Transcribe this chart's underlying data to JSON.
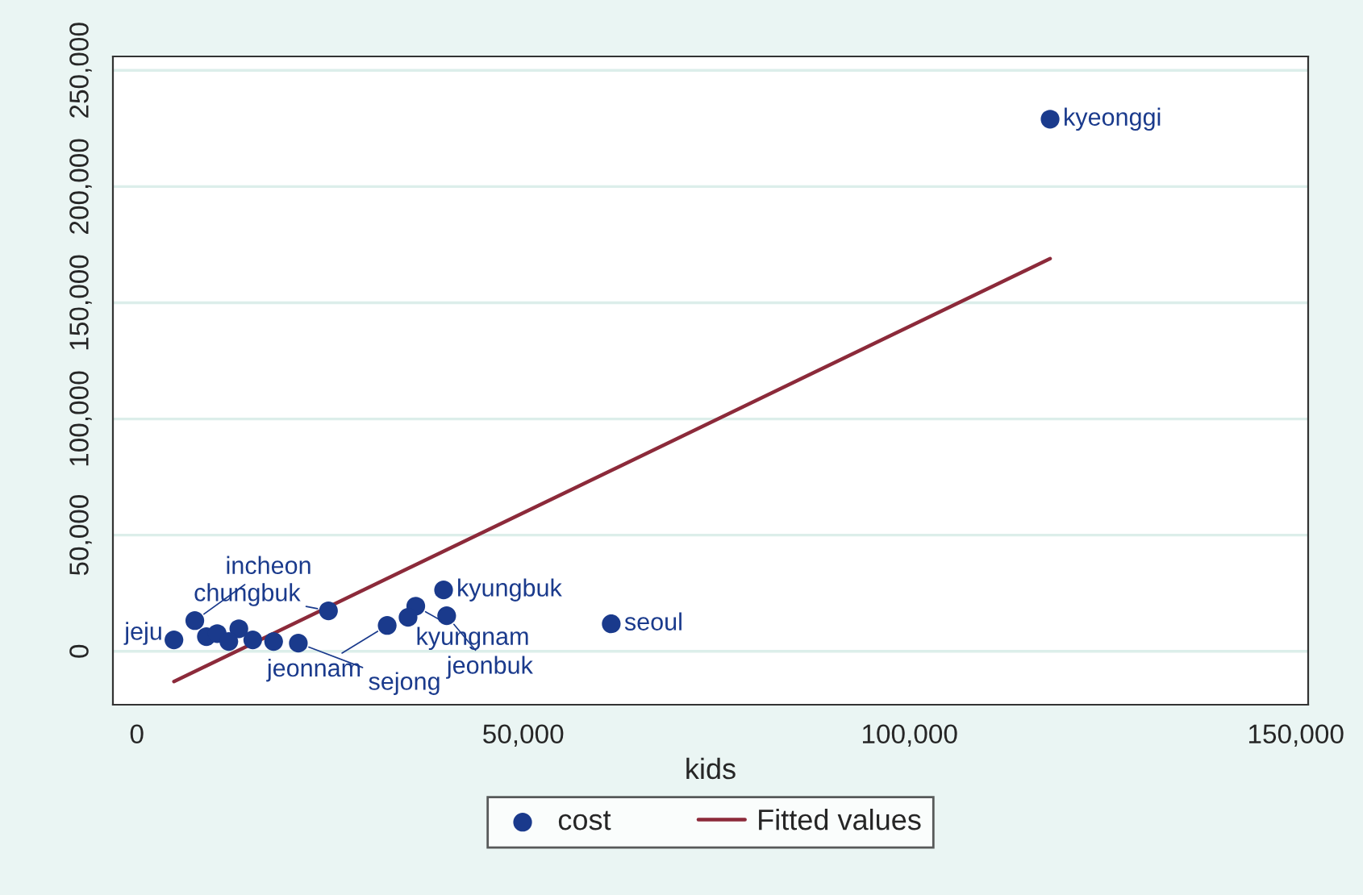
{
  "chart_data": {
    "type": "scatter",
    "xlabel": "kids",
    "xlim": [
      -3100,
      151600
    ],
    "xticks": [
      {
        "value": 0,
        "label": "0"
      },
      {
        "value": 50000,
        "label": "50,000"
      },
      {
        "value": 100000,
        "label": "100,000"
      },
      {
        "value": 150000,
        "label": "150,000"
      }
    ],
    "ylim": [
      -23000,
      256000
    ],
    "yticks": [
      {
        "value": 0,
        "label": "0"
      },
      {
        "value": 50000,
        "label": "50,000"
      },
      {
        "value": 100000,
        "label": "100,000"
      },
      {
        "value": 150000,
        "label": "150,000"
      },
      {
        "value": 200000,
        "label": "200,000"
      },
      {
        "value": 250000,
        "label": "250,000"
      }
    ],
    "grid": "y",
    "legend": "bottom",
    "series": [
      {
        "name": "cost",
        "marker": "circle",
        "color": "#1a3a8c",
        "x": [
          118200,
          61400,
          39700,
          36100,
          40100,
          35100,
          24800,
          32400,
          7500,
          4800,
          9000,
          10400,
          13200,
          11900,
          15000,
          17700,
          20900
        ],
        "values": [
          229000,
          11800,
          26400,
          19400,
          15300,
          14600,
          17400,
          11100,
          13200,
          4900,
          6300,
          7600,
          9700,
          4200,
          4900,
          4200,
          3500
        ]
      },
      {
        "name": "Fitted values",
        "type": "line",
        "color": "#8c2a3a",
        "line_style": "solid",
        "x": [
          4800,
          118200
        ],
        "values": [
          -13000,
          169000
        ]
      }
    ],
    "annotations": [
      {
        "text": "kyeonggi",
        "x": 118200,
        "y": 229000
      },
      {
        "text": "seoul",
        "x": 61400,
        "y": 11800
      },
      {
        "text": "kyungbuk",
        "x": 39700,
        "y": 26400
      },
      {
        "text": "kyungnam",
        "x": 36100,
        "y": 19400
      },
      {
        "text": "jeonbuk",
        "x": 40100,
        "y": 15300
      },
      {
        "text": "chungbuk",
        "x": 24800,
        "y": 17400
      },
      {
        "text": "jeonnam",
        "x": 32400,
        "y": 11100
      },
      {
        "text": "incheon",
        "x": 7500,
        "y": 13200
      },
      {
        "text": "sejong",
        "x": 20900,
        "y": 3500
      },
      {
        "text": "jeju",
        "x": 4800,
        "y": 4900
      }
    ]
  }
}
